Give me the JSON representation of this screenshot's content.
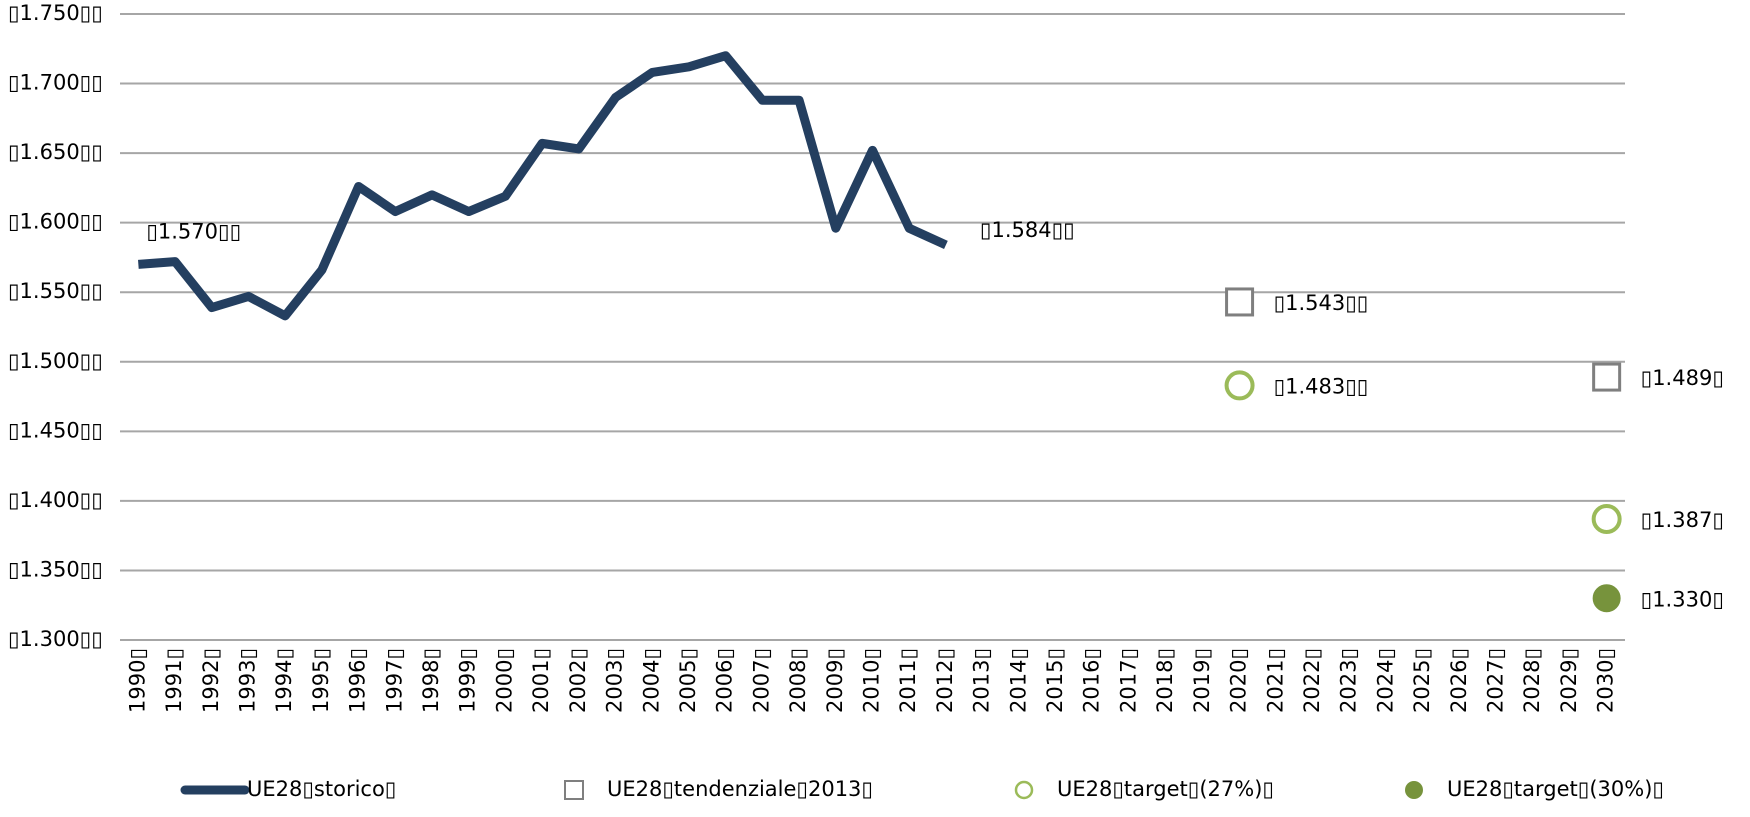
{
  "chart_data": {
    "type": "line",
    "categories": [
      "1990▯",
      "1991▯",
      "1992▯",
      "1993▯",
      "1994▯",
      "1995▯",
      "1996▯",
      "1997▯",
      "1998▯",
      "1999▯",
      "2000▯",
      "2001▯",
      "2002▯",
      "2003▯",
      "2004▯",
      "2005▯",
      "2006▯",
      "2007▯",
      "2008▯",
      "2009▯",
      "2010▯",
      "2011▯",
      "2012▯",
      "2013▯",
      "2014▯",
      "2015▯",
      "2016▯",
      "2017▯",
      "2018▯",
      "2019▯",
      "2020▯",
      "2021▯",
      "2022▯",
      "2023▯",
      "2024▯",
      "2025▯",
      "2026▯",
      "2027▯",
      "2028▯",
      "2029▯",
      "2030▯"
    ],
    "ylim": [
      1300,
      1750
    ],
    "yticks": [
      {
        "value": 1300,
        "label": "▯1.300▯▯"
      },
      {
        "value": 1350,
        "label": "▯1.350▯▯"
      },
      {
        "value": 1400,
        "label": "▯1.400▯▯"
      },
      {
        "value": 1450,
        "label": "▯1.450▯▯"
      },
      {
        "value": 1500,
        "label": "▯1.500▯▯"
      },
      {
        "value": 1550,
        "label": "▯1.550▯▯"
      },
      {
        "value": 1600,
        "label": "▯1.600▯▯"
      },
      {
        "value": 1650,
        "label": "▯1.650▯▯"
      },
      {
        "value": 1700,
        "label": "▯1.700▯▯"
      },
      {
        "value": 1750,
        "label": "▯1.750▯▯"
      }
    ],
    "grid": true,
    "legend": "bottom",
    "series": [
      {
        "name": "UE28▯storico▯",
        "color": "#243f60",
        "marker": "line",
        "values": [
          1570,
          1572,
          1539,
          1547,
          1533,
          1566,
          1626,
          1608,
          1620,
          1608,
          1619,
          1657,
          1653,
          1690,
          1708,
          1712,
          1720,
          1688,
          1688,
          1596,
          1652,
          1596,
          1584,
          null,
          null,
          null,
          null,
          null,
          null,
          null,
          null,
          null,
          null,
          null,
          null,
          null,
          null,
          null,
          null,
          null,
          null
        ],
        "value_labels": [
          "▯1.570▯▯",
          null,
          null,
          null,
          null,
          null,
          null,
          null,
          null,
          null,
          null,
          null,
          null,
          null,
          null,
          null,
          null,
          null,
          null,
          null,
          null,
          null,
          "▯1.584▯▯",
          null,
          null,
          null,
          null,
          null,
          null,
          null,
          null,
          null,
          null,
          null,
          null,
          null,
          null,
          null,
          null,
          null,
          null
        ]
      },
      {
        "name": "UE28▯tendenziale▯2013▯",
        "color": "#7f7f7f",
        "marker": "square",
        "values": [
          null,
          null,
          null,
          null,
          null,
          null,
          null,
          null,
          null,
          null,
          null,
          null,
          null,
          null,
          null,
          null,
          null,
          null,
          null,
          null,
          null,
          null,
          null,
          null,
          null,
          null,
          null,
          null,
          null,
          null,
          1543,
          null,
          null,
          null,
          null,
          null,
          null,
          null,
          null,
          null,
          1489
        ],
        "value_labels": [
          null,
          null,
          null,
          null,
          null,
          null,
          null,
          null,
          null,
          null,
          null,
          null,
          null,
          null,
          null,
          null,
          null,
          null,
          null,
          null,
          null,
          null,
          null,
          null,
          null,
          null,
          null,
          null,
          null,
          null,
          "▯1.543▯▯",
          null,
          null,
          null,
          null,
          null,
          null,
          null,
          null,
          null,
          "▯1.489▯"
        ]
      },
      {
        "name": "UE28▯target▯(27%)▯",
        "color": "#9bbb59",
        "marker": "circle",
        "values": [
          null,
          null,
          null,
          null,
          null,
          null,
          null,
          null,
          null,
          null,
          null,
          null,
          null,
          null,
          null,
          null,
          null,
          null,
          null,
          null,
          null,
          null,
          null,
          null,
          null,
          null,
          null,
          null,
          null,
          null,
          1483,
          null,
          null,
          null,
          null,
          null,
          null,
          null,
          null,
          null,
          1387
        ],
        "value_labels": [
          null,
          null,
          null,
          null,
          null,
          null,
          null,
          null,
          null,
          null,
          null,
          null,
          null,
          null,
          null,
          null,
          null,
          null,
          null,
          null,
          null,
          null,
          null,
          null,
          null,
          null,
          null,
          null,
          null,
          null,
          "▯1.483▯▯",
          null,
          null,
          null,
          null,
          null,
          null,
          null,
          null,
          null,
          "▯1.387▯"
        ]
      },
      {
        "name": "UE28▯target▯(30%)▯",
        "color": "#77933c",
        "marker": "filled-circle",
        "values": [
          null,
          null,
          null,
          null,
          null,
          null,
          null,
          null,
          null,
          null,
          null,
          null,
          null,
          null,
          null,
          null,
          null,
          null,
          null,
          null,
          null,
          null,
          null,
          null,
          null,
          null,
          null,
          null,
          null,
          null,
          null,
          null,
          null,
          null,
          null,
          null,
          null,
          null,
          null,
          null,
          1330
        ],
        "value_labels": [
          null,
          null,
          null,
          null,
          null,
          null,
          null,
          null,
          null,
          null,
          null,
          null,
          null,
          null,
          null,
          null,
          null,
          null,
          null,
          null,
          null,
          null,
          null,
          null,
          null,
          null,
          null,
          null,
          null,
          null,
          null,
          null,
          null,
          null,
          null,
          null,
          null,
          null,
          null,
          null,
          "▯1.330▯"
        ]
      }
    ]
  }
}
